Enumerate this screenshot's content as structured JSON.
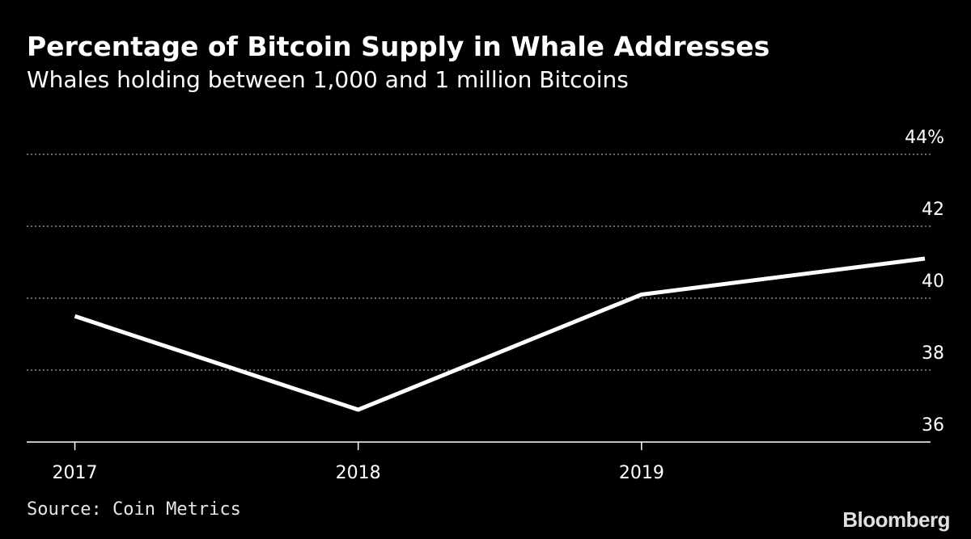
{
  "title": "Percentage of Bitcoin Supply in Whale Addresses",
  "subtitle": "Whales holding between 1,000 and 1 million Bitcoins",
  "source": "Source: Coin Metrics",
  "brand": "Bloomberg",
  "colors": {
    "background": "#000000",
    "line": "#ffffff",
    "grid": "#8a8a8a",
    "text": "#ffffff"
  },
  "chart_data": {
    "type": "line",
    "title": "Percentage of Bitcoin Supply in Whale Addresses",
    "subtitle": "Whales holding between 1,000 and 1 million Bitcoins",
    "x": [
      2016.92,
      2017.92,
      2018.92,
      2019.92
    ],
    "series": [
      {
        "values": [
          39.5,
          36.9,
          40.1,
          41.1
        ]
      }
    ],
    "xlim": [
      2016.75,
      2019.94
    ],
    "ylim": [
      36,
      44
    ],
    "xticks": [
      {
        "value": 2016.92,
        "label": "2017"
      },
      {
        "value": 2017.92,
        "label": "2018"
      },
      {
        "value": 2018.92,
        "label": "2019"
      }
    ],
    "yticks": [
      {
        "value": 36,
        "label": "36"
      },
      {
        "value": 38,
        "label": "38"
      },
      {
        "value": 40,
        "label": "40"
      },
      {
        "value": 42,
        "label": "42"
      },
      {
        "value": 44,
        "label": "44%"
      }
    ],
    "grid": true,
    "yaxis_position": "right",
    "legend": "none"
  }
}
